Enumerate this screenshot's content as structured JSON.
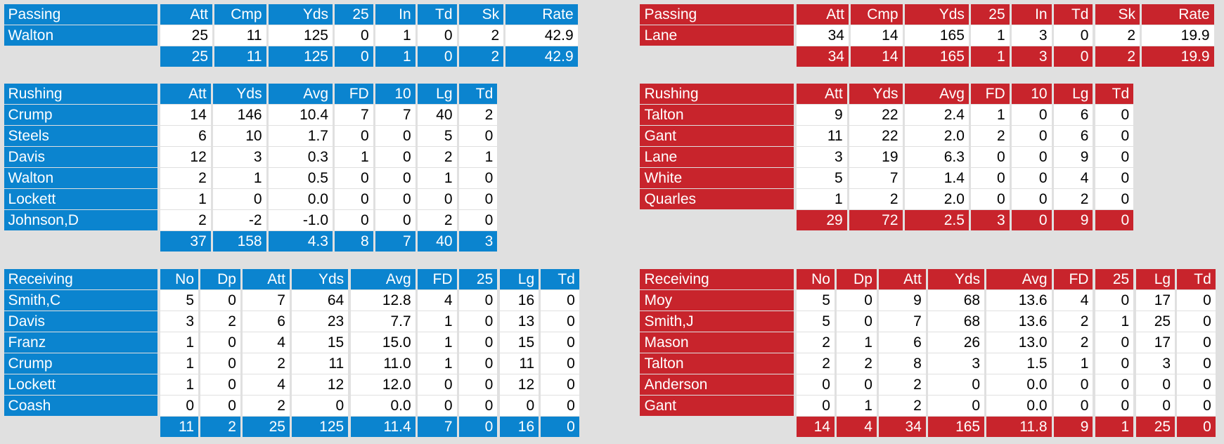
{
  "teams": [
    {
      "passing": {
        "headers": [
          "Passing",
          "Att",
          "Cmp",
          "Yds",
          "25",
          "In",
          "Td",
          "Sk",
          "Rate"
        ],
        "rows": [
          [
            "Walton",
            "25",
            "11",
            "125",
            "0",
            "1",
            "0",
            "2",
            "42.9"
          ]
        ],
        "totals": [
          "25",
          "11",
          "125",
          "0",
          "1",
          "0",
          "2",
          "42.9"
        ]
      },
      "rushing": {
        "headers": [
          "Rushing",
          "Att",
          "Yds",
          "Avg",
          "FD",
          "10",
          "Lg",
          "Td"
        ],
        "rows": [
          [
            "Crump",
            "14",
            "146",
            "10.4",
            "7",
            "7",
            "40",
            "2"
          ],
          [
            "Steels",
            "6",
            "10",
            "1.7",
            "0",
            "0",
            "5",
            "0"
          ],
          [
            "Davis",
            "12",
            "3",
            "0.3",
            "1",
            "0",
            "2",
            "1"
          ],
          [
            "Walton",
            "2",
            "1",
            "0.5",
            "0",
            "0",
            "1",
            "0"
          ],
          [
            "Lockett",
            "1",
            "0",
            "0.0",
            "0",
            "0",
            "0",
            "0"
          ],
          [
            "Johnson,D",
            "2",
            "-2",
            "-1.0",
            "0",
            "0",
            "2",
            "0"
          ]
        ],
        "totals": [
          "37",
          "158",
          "4.3",
          "8",
          "7",
          "40",
          "3"
        ]
      },
      "receiving": {
        "headers": [
          "Receiving",
          "No",
          "Dp",
          "Att",
          "Yds",
          "Avg",
          "FD",
          "25",
          "Lg",
          "Td"
        ],
        "rows": [
          [
            "Smith,C",
            "5",
            "0",
            "7",
            "64",
            "12.8",
            "4",
            "0",
            "16",
            "0"
          ],
          [
            "Davis",
            "3",
            "2",
            "6",
            "23",
            "7.7",
            "1",
            "0",
            "13",
            "0"
          ],
          [
            "Franz",
            "1",
            "0",
            "4",
            "15",
            "15.0",
            "1",
            "0",
            "15",
            "0"
          ],
          [
            "Crump",
            "1",
            "0",
            "2",
            "11",
            "11.0",
            "1",
            "0",
            "11",
            "0"
          ],
          [
            "Lockett",
            "1",
            "0",
            "4",
            "12",
            "12.0",
            "0",
            "0",
            "12",
            "0"
          ],
          [
            "Coash",
            "0",
            "0",
            "2",
            "0",
            "0.0",
            "0",
            "0",
            "0",
            "0"
          ]
        ],
        "totals": [
          "11",
          "2",
          "25",
          "125",
          "11.4",
          "7",
          "0",
          "16",
          "0"
        ]
      }
    },
    {
      "passing": {
        "headers": [
          "Passing",
          "Att",
          "Cmp",
          "Yds",
          "25",
          "In",
          "Td",
          "Sk",
          "Rate"
        ],
        "rows": [
          [
            "Lane",
            "34",
            "14",
            "165",
            "1",
            "3",
            "0",
            "2",
            "19.9"
          ]
        ],
        "totals": [
          "34",
          "14",
          "165",
          "1",
          "3",
          "0",
          "2",
          "19.9"
        ]
      },
      "rushing": {
        "headers": [
          "Rushing",
          "Att",
          "Yds",
          "Avg",
          "FD",
          "10",
          "Lg",
          "Td"
        ],
        "rows": [
          [
            "Talton",
            "9",
            "22",
            "2.4",
            "1",
            "0",
            "6",
            "0"
          ],
          [
            "Gant",
            "11",
            "22",
            "2.0",
            "2",
            "0",
            "6",
            "0"
          ],
          [
            "Lane",
            "3",
            "19",
            "6.3",
            "0",
            "0",
            "9",
            "0"
          ],
          [
            "White",
            "5",
            "7",
            "1.4",
            "0",
            "0",
            "4",
            "0"
          ],
          [
            "Quarles",
            "1",
            "2",
            "2.0",
            "0",
            "0",
            "2",
            "0"
          ]
        ],
        "totals": [
          "29",
          "72",
          "2.5",
          "3",
          "0",
          "9",
          "0"
        ]
      },
      "receiving": {
        "headers": [
          "Receiving",
          "No",
          "Dp",
          "Att",
          "Yds",
          "Avg",
          "FD",
          "25",
          "Lg",
          "Td"
        ],
        "rows": [
          [
            "Moy",
            "5",
            "0",
            "9",
            "68",
            "13.6",
            "4",
            "0",
            "17",
            "0"
          ],
          [
            "Smith,J",
            "5",
            "0",
            "7",
            "68",
            "13.6",
            "2",
            "1",
            "25",
            "0"
          ],
          [
            "Mason",
            "2",
            "1",
            "6",
            "26",
            "13.0",
            "2",
            "0",
            "17",
            "0"
          ],
          [
            "Talton",
            "2",
            "2",
            "8",
            "3",
            "1.5",
            "1",
            "0",
            "3",
            "0"
          ],
          [
            "Anderson",
            "0",
            "0",
            "2",
            "0",
            "0.0",
            "0",
            "0",
            "0",
            "0"
          ],
          [
            "Gant",
            "0",
            "1",
            "2",
            "0",
            "0.0",
            "0",
            "0",
            "0",
            "0"
          ]
        ],
        "totals": [
          "14",
          "4",
          "34",
          "165",
          "11.8",
          "9",
          "1",
          "25",
          "0"
        ]
      }
    }
  ]
}
